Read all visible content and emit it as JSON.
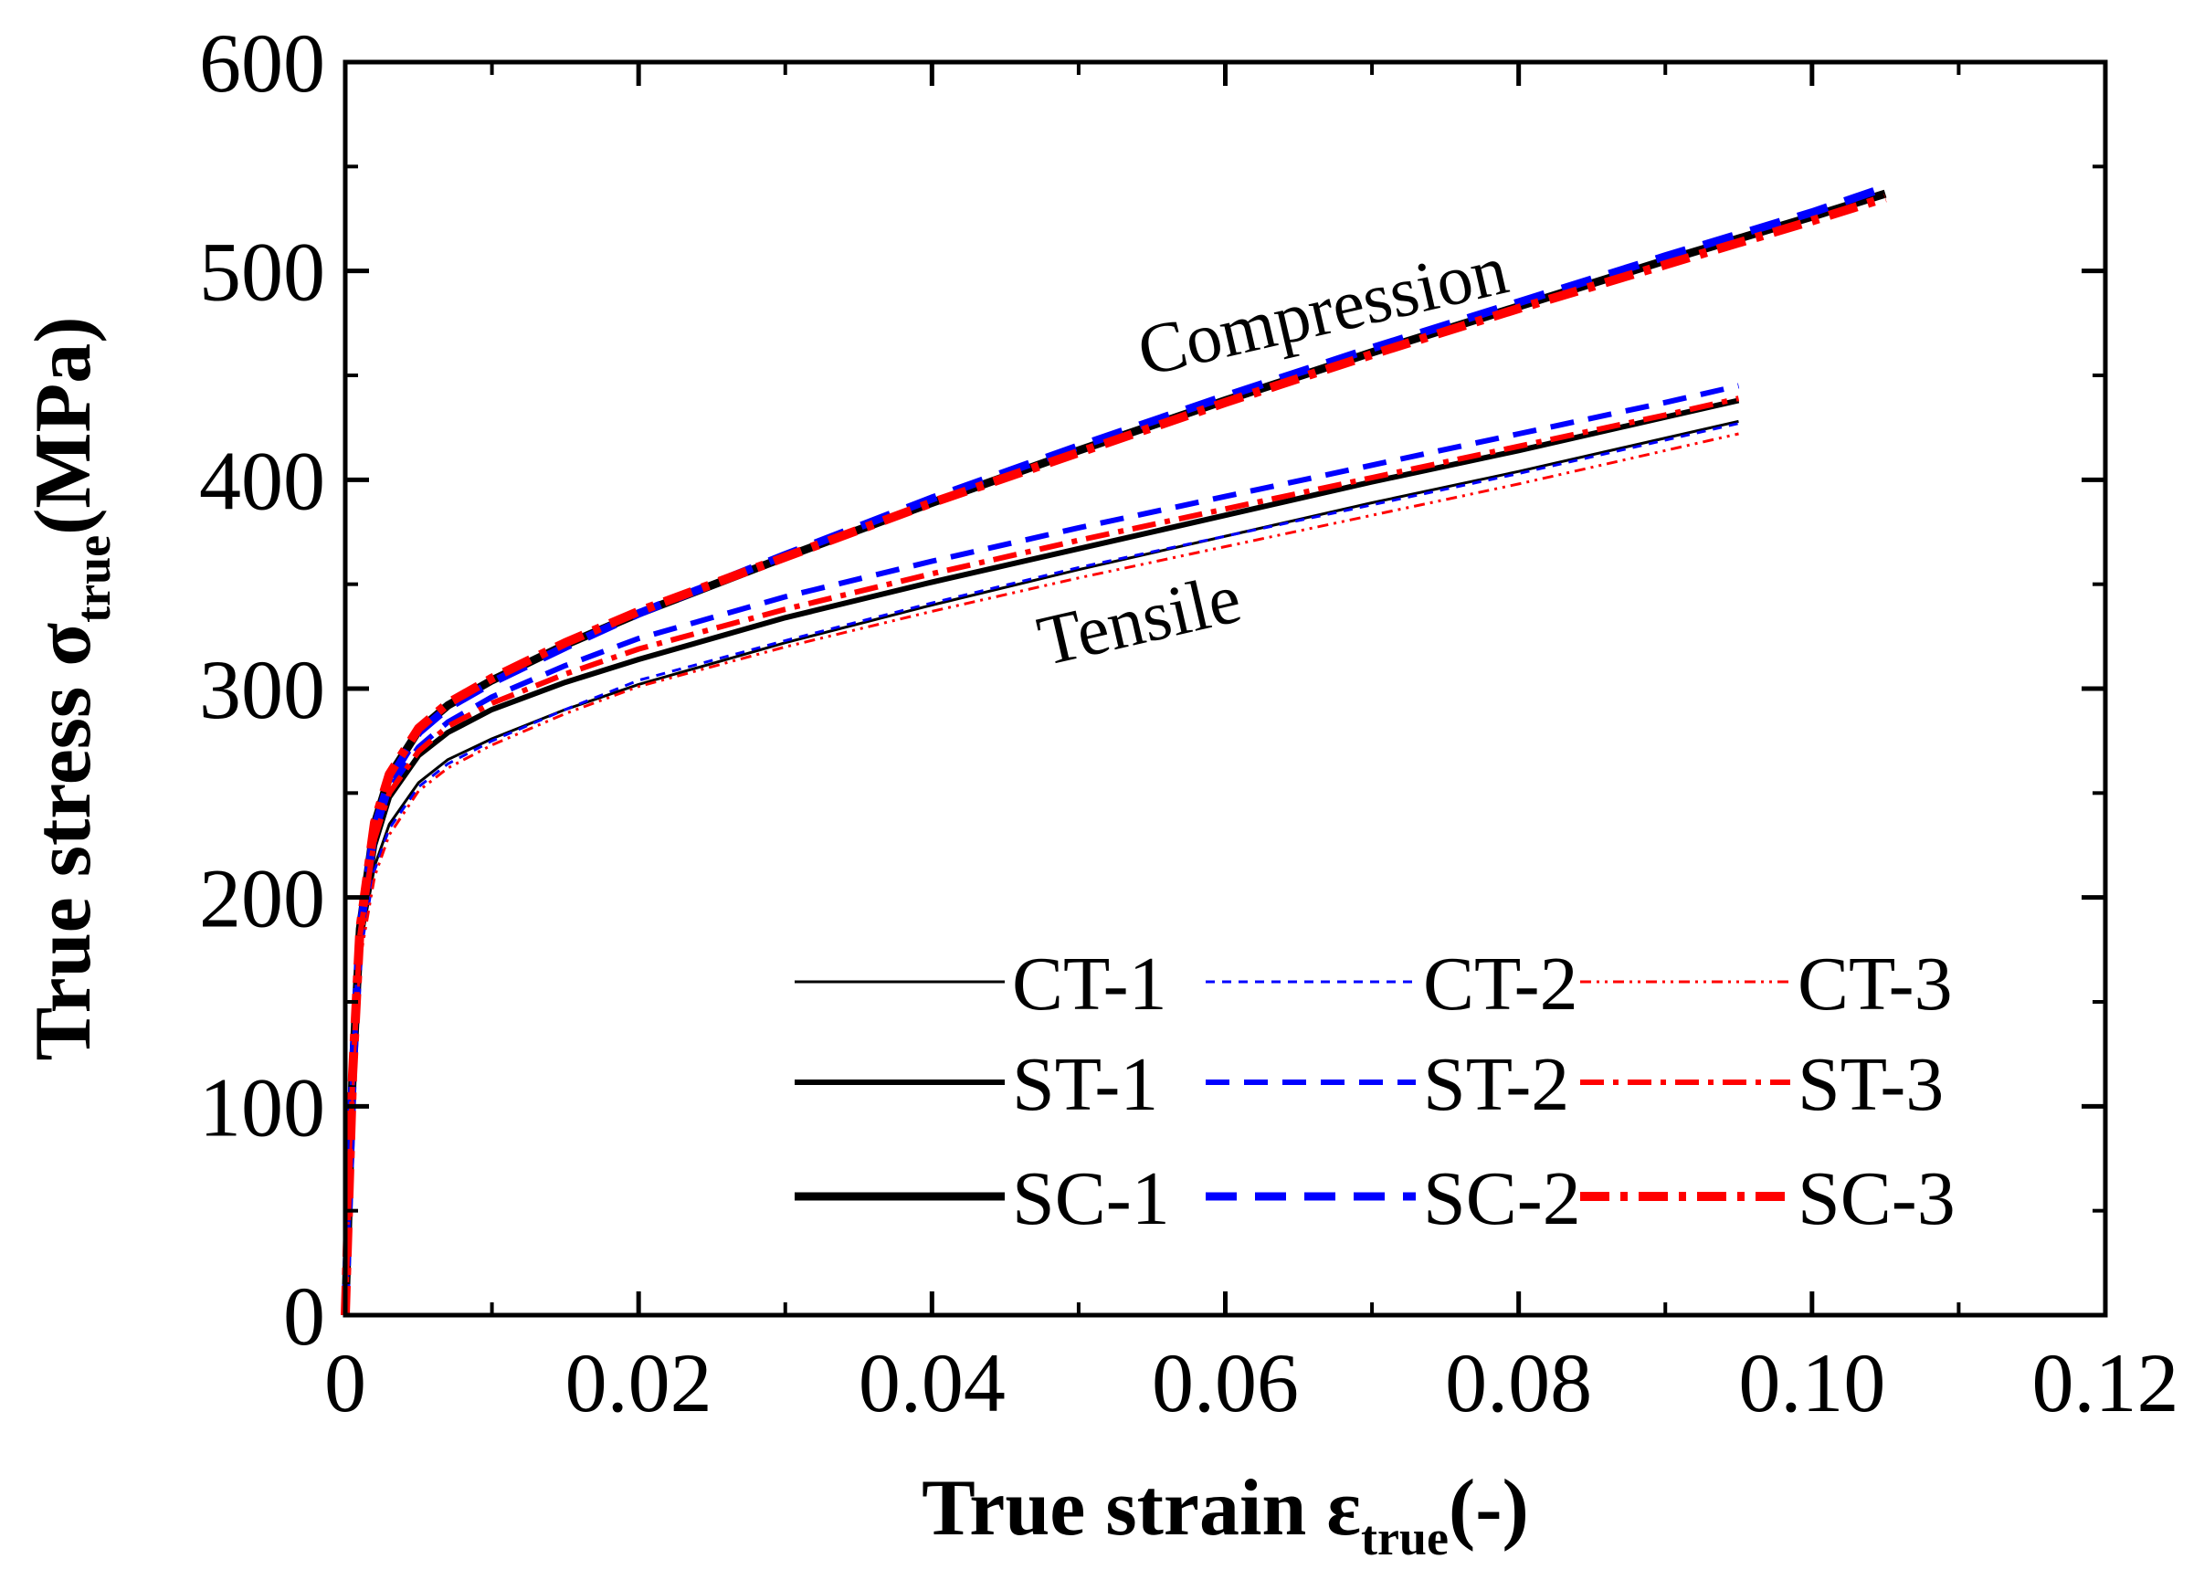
{
  "chart_data": {
    "type": "line",
    "title": "",
    "xlabel_main": "True strain ε",
    "xlabel_sub": "true",
    "xlabel_tail": "(-)",
    "ylabel_main": "True stress σ",
    "ylabel_sub": "true",
    "ylabel_tail": "(MPa)",
    "xlim": [
      0,
      0.12
    ],
    "ylim": [
      0,
      600
    ],
    "x_ticks": [
      0,
      0.02,
      0.04,
      0.06,
      0.08,
      0.1,
      0.12
    ],
    "x_tick_labels": [
      "0",
      "0.02",
      "0.04",
      "0.06",
      "0.08",
      "0.10",
      "0.12"
    ],
    "y_ticks": [
      0,
      100,
      200,
      300,
      400,
      500,
      600
    ],
    "y_tick_labels": [
      "0",
      "100",
      "200",
      "300",
      "400",
      "500",
      "600"
    ],
    "annotations": [
      {
        "text": "Compression",
        "x": 0.067,
        "y": 470,
        "angle_deg": -13
      },
      {
        "text": "Tensile",
        "x": 0.0545,
        "y": 322,
        "angle_deg": -13
      }
    ],
    "legend_position": "bottom-right",
    "series": [
      {
        "name": "CT-1",
        "color": "#000000",
        "width": 3,
        "dash": "",
        "x": [
          0,
          0.0005,
          0.001,
          0.002,
          0.003,
          0.005,
          0.007,
          0.01,
          0.015,
          0.02,
          0.03,
          0.04,
          0.05,
          0.06,
          0.07,
          0.08,
          0.09,
          0.095
        ],
        "y": [
          0,
          110,
          175,
          215,
          235,
          255,
          266,
          276,
          290,
          302,
          322,
          340,
          357,
          373,
          389,
          404,
          420,
          428
        ]
      },
      {
        "name": "ST-1",
        "color": "#000000",
        "width": 6,
        "dash": "",
        "x": [
          0,
          0.0005,
          0.001,
          0.002,
          0.003,
          0.005,
          0.007,
          0.01,
          0.015,
          0.02,
          0.03,
          0.04,
          0.05,
          0.06,
          0.07,
          0.08,
          0.09,
          0.095
        ],
        "y": [
          0,
          110,
          180,
          225,
          248,
          268,
          279,
          290,
          303,
          314,
          334,
          351,
          367,
          383,
          399,
          414,
          430,
          438
        ]
      },
      {
        "name": "SC-1",
        "color": "#000000",
        "width": 9,
        "dash": "",
        "x": [
          0,
          0.0005,
          0.001,
          0.002,
          0.003,
          0.005,
          0.007,
          0.01,
          0.015,
          0.02,
          0.03,
          0.04,
          0.05,
          0.06,
          0.07,
          0.08,
          0.09,
          0.1,
          0.105
        ],
        "y": [
          0,
          115,
          185,
          235,
          258,
          280,
          292,
          304,
          321,
          336,
          363,
          389,
          414,
          438,
          461,
          483,
          505,
          526,
          537
        ]
      },
      {
        "name": "CT-2",
        "color": "#0000ff",
        "width": 3,
        "dash": "10,8",
        "x": [
          0,
          0.0005,
          0.001,
          0.002,
          0.003,
          0.005,
          0.007,
          0.01,
          0.015,
          0.02,
          0.03,
          0.04,
          0.05,
          0.06,
          0.07,
          0.08,
          0.09,
          0.095
        ],
        "y": [
          0,
          108,
          172,
          213,
          233,
          253,
          264,
          275,
          290,
          304,
          323,
          341,
          358,
          373,
          388,
          403,
          419,
          427
        ]
      },
      {
        "name": "ST-2",
        "color": "#0000ff",
        "width": 6,
        "dash": "26,16",
        "x": [
          0,
          0.0005,
          0.001,
          0.002,
          0.003,
          0.005,
          0.007,
          0.01,
          0.015,
          0.02,
          0.03,
          0.04,
          0.05,
          0.06,
          0.07,
          0.08,
          0.09,
          0.095
        ],
        "y": [
          0,
          112,
          182,
          230,
          252,
          272,
          284,
          296,
          311,
          324,
          344,
          361,
          377,
          392,
          407,
          422,
          437,
          445
        ]
      },
      {
        "name": "SC-2",
        "color": "#0000ff",
        "width": 9,
        "dash": "34,20",
        "x": [
          0,
          0.0005,
          0.001,
          0.002,
          0.003,
          0.005,
          0.007,
          0.01,
          0.015,
          0.02,
          0.03,
          0.04,
          0.05,
          0.06,
          0.07,
          0.08,
          0.09,
          0.1,
          0.105
        ],
        "y": [
          0,
          114,
          184,
          233,
          256,
          279,
          291,
          303,
          320,
          336,
          364,
          391,
          416,
          440,
          463,
          485,
          507,
          528,
          540
        ]
      },
      {
        "name": "CT-3",
        "color": "#ff0000",
        "width": 3,
        "dash": "12,6,3,6,3,6",
        "x": [
          0,
          0.0005,
          0.001,
          0.002,
          0.003,
          0.005,
          0.007,
          0.01,
          0.015,
          0.02,
          0.03,
          0.04,
          0.05,
          0.06,
          0.07,
          0.08,
          0.09,
          0.095
        ],
        "y": [
          0,
          105,
          170,
          210,
          230,
          251,
          262,
          273,
          288,
          301,
          320,
          337,
          353,
          368,
          383,
          398,
          414,
          422
        ]
      },
      {
        "name": "ST-3",
        "color": "#ff0000",
        "width": 6,
        "dash": "26,10,6,10",
        "x": [
          0,
          0.0005,
          0.001,
          0.002,
          0.003,
          0.005,
          0.007,
          0.01,
          0.015,
          0.02,
          0.03,
          0.04,
          0.05,
          0.06,
          0.07,
          0.08,
          0.09,
          0.095
        ],
        "y": [
          0,
          112,
          182,
          228,
          250,
          270,
          282,
          293,
          307,
          319,
          338,
          355,
          371,
          386,
          401,
          416,
          431,
          439
        ]
      },
      {
        "name": "SC-3",
        "color": "#ff0000",
        "width": 10,
        "dash": "32,12,8,12",
        "x": [
          0,
          0.0005,
          0.001,
          0.002,
          0.003,
          0.005,
          0.007,
          0.01,
          0.015,
          0.02,
          0.03,
          0.04,
          0.05,
          0.06,
          0.07,
          0.08,
          0.09,
          0.1,
          0.105
        ],
        "y": [
          0,
          115,
          185,
          236,
          259,
          281,
          293,
          305,
          322,
          337,
          363,
          389,
          413,
          437,
          460,
          482,
          503,
          524,
          535
        ]
      }
    ]
  }
}
